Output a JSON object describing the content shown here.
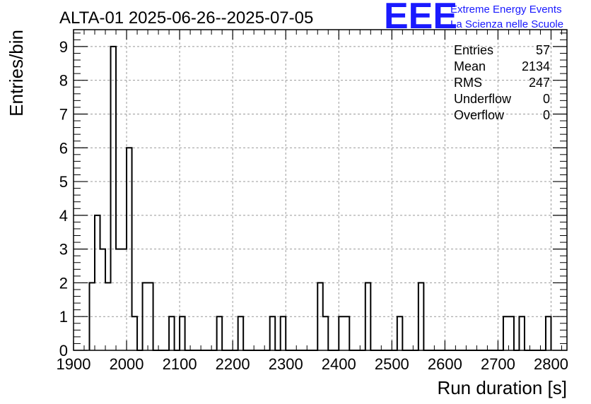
{
  "colors": {
    "logo": "#1a1aff",
    "histogram": "#000000",
    "grid": "#999999"
  },
  "logo": {
    "mark": "EEE",
    "line1": "Extreme Energy Events",
    "line2": "La Scienza nelle Scuole"
  },
  "stats": [
    {
      "label": "Entries",
      "value": "57"
    },
    {
      "label": "Mean",
      "value": "2134"
    },
    {
      "label": "RMS",
      "value": "247"
    },
    {
      "label": "Underflow",
      "value": "0"
    },
    {
      "label": "Overflow",
      "value": "0"
    }
  ],
  "chart_data": {
    "type": "bar",
    "title": "ALTA-01 2025-06-26--2025-07-05",
    "xlabel": "Run duration [s]",
    "ylabel": "Entries/bin",
    "xlim": [
      1900,
      2830
    ],
    "ylim": [
      0,
      9.5
    ],
    "xticks": [
      1900,
      2000,
      2100,
      2200,
      2300,
      2400,
      2500,
      2600,
      2700,
      2800
    ],
    "yticks": [
      0,
      1,
      2,
      3,
      4,
      5,
      6,
      7,
      8,
      9
    ],
    "grid": true,
    "bin_width": 10,
    "histogram": "outline",
    "bins": [
      {
        "x": 1930,
        "value": 2
      },
      {
        "x": 1940,
        "value": 4
      },
      {
        "x": 1950,
        "value": 3
      },
      {
        "x": 1960,
        "value": 2
      },
      {
        "x": 1970,
        "value": 9
      },
      {
        "x": 1980,
        "value": 3
      },
      {
        "x": 1990,
        "value": 3
      },
      {
        "x": 2000,
        "value": 6
      },
      {
        "x": 2010,
        "value": 1
      },
      {
        "x": 2020,
        "value": 0
      },
      {
        "x": 2030,
        "value": 2
      },
      {
        "x": 2040,
        "value": 2
      },
      {
        "x": 2080,
        "value": 1
      },
      {
        "x": 2100,
        "value": 1
      },
      {
        "x": 2170,
        "value": 1
      },
      {
        "x": 2210,
        "value": 1
      },
      {
        "x": 2270,
        "value": 1
      },
      {
        "x": 2290,
        "value": 1
      },
      {
        "x": 2360,
        "value": 2
      },
      {
        "x": 2370,
        "value": 1
      },
      {
        "x": 2400,
        "value": 1
      },
      {
        "x": 2410,
        "value": 1
      },
      {
        "x": 2450,
        "value": 2
      },
      {
        "x": 2510,
        "value": 1
      },
      {
        "x": 2550,
        "value": 2
      },
      {
        "x": 2710,
        "value": 1
      },
      {
        "x": 2720,
        "value": 1
      },
      {
        "x": 2740,
        "value": 1
      },
      {
        "x": 2790,
        "value": 1
      }
    ]
  }
}
